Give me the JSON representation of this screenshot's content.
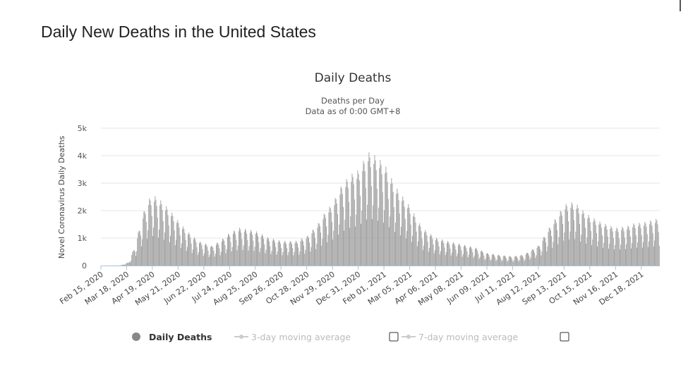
{
  "page": {
    "title": "Daily New Deaths in the United States"
  },
  "chart_data": {
    "type": "bar",
    "title": "Daily Deaths",
    "subtitle_lines": [
      "Deaths per Day",
      "Data as of 0:00 GMT+8"
    ],
    "ylabel": "Novel Coronavirus Daily Deaths",
    "ylim": [
      0,
      5000
    ],
    "yticks": [
      {
        "value": 0,
        "label": "0"
      },
      {
        "value": 1000,
        "label": "1k"
      },
      {
        "value": 2000,
        "label": "2k"
      },
      {
        "value": 3000,
        "label": "3k"
      },
      {
        "value": 4000,
        "label": "4k"
      },
      {
        "value": 5000,
        "label": "5k"
      }
    ],
    "x_start": "2020-02-15",
    "x_end": "2022-01-10",
    "x_ticks": [
      {
        "date": "2020-02-15",
        "label": "Feb 15, 2020"
      },
      {
        "date": "2020-03-18",
        "label": "Mar 18, 2020"
      },
      {
        "date": "2020-04-19",
        "label": "Apr 19, 2020"
      },
      {
        "date": "2020-05-21",
        "label": "May 21, 2020"
      },
      {
        "date": "2020-06-22",
        "label": "Jun 22, 2020"
      },
      {
        "date": "2020-07-24",
        "label": "Jul 24, 2020"
      },
      {
        "date": "2020-08-25",
        "label": "Aug 25, 2020"
      },
      {
        "date": "2020-09-26",
        "label": "Sep 26, 2020"
      },
      {
        "date": "2020-10-28",
        "label": "Oct 28, 2020"
      },
      {
        "date": "2020-11-29",
        "label": "Nov 29, 2020"
      },
      {
        "date": "2020-12-31",
        "label": "Dec 31, 2020"
      },
      {
        "date": "2021-02-01",
        "label": "Feb 01, 2021"
      },
      {
        "date": "2021-03-05",
        "label": "Mar 05, 2021"
      },
      {
        "date": "2021-04-06",
        "label": "Apr 06, 2021"
      },
      {
        "date": "2021-05-08",
        "label": "May 08, 2021"
      },
      {
        "date": "2021-06-09",
        "label": "Jun 09, 2021"
      },
      {
        "date": "2021-07-11",
        "label": "Jul 11, 2021"
      },
      {
        "date": "2021-08-12",
        "label": "Aug 12, 2021"
      },
      {
        "date": "2021-09-13",
        "label": "Sep 13, 2021"
      },
      {
        "date": "2021-10-15",
        "label": "Oct 15, 2021"
      },
      {
        "date": "2021-11-16",
        "label": "Nov 16, 2021"
      },
      {
        "date": "2021-12-18",
        "label": "Dec 18, 2021"
      }
    ],
    "weekly_pattern": [
      0.5,
      0.65,
      1.1,
      1.2,
      1.15,
      1.05,
      0.85
    ],
    "trend_points": [
      {
        "date": "2020-02-15",
        "value": 0
      },
      {
        "date": "2020-03-10",
        "value": 5
      },
      {
        "date": "2020-03-20",
        "value": 100
      },
      {
        "date": "2020-03-28",
        "value": 600
      },
      {
        "date": "2020-04-05",
        "value": 1400
      },
      {
        "date": "2020-04-12",
        "value": 1950
      },
      {
        "date": "2020-04-19",
        "value": 2150
      },
      {
        "date": "2020-04-28",
        "value": 2000
      },
      {
        "date": "2020-05-10",
        "value": 1700
      },
      {
        "date": "2020-05-21",
        "value": 1350
      },
      {
        "date": "2020-06-01",
        "value": 1050
      },
      {
        "date": "2020-06-15",
        "value": 750
      },
      {
        "date": "2020-07-01",
        "value": 600
      },
      {
        "date": "2020-07-12",
        "value": 750
      },
      {
        "date": "2020-07-24",
        "value": 1000
      },
      {
        "date": "2020-08-05",
        "value": 1150
      },
      {
        "date": "2020-08-25",
        "value": 1050
      },
      {
        "date": "2020-09-10",
        "value": 850
      },
      {
        "date": "2020-09-26",
        "value": 750
      },
      {
        "date": "2020-10-15",
        "value": 750
      },
      {
        "date": "2020-10-28",
        "value": 900
      },
      {
        "date": "2020-11-10",
        "value": 1250
      },
      {
        "date": "2020-11-20",
        "value": 1650
      },
      {
        "date": "2020-11-29",
        "value": 1900
      },
      {
        "date": "2020-12-10",
        "value": 2450
      },
      {
        "date": "2020-12-20",
        "value": 2750
      },
      {
        "date": "2020-12-31",
        "value": 2900
      },
      {
        "date": "2021-01-12",
        "value": 3450
      },
      {
        "date": "2021-01-20",
        "value": 3350
      },
      {
        "date": "2021-02-01",
        "value": 3100
      },
      {
        "date": "2021-02-15",
        "value": 2400
      },
      {
        "date": "2021-03-05",
        "value": 1800
      },
      {
        "date": "2021-03-20",
        "value": 1150
      },
      {
        "date": "2021-04-06",
        "value": 850
      },
      {
        "date": "2021-04-20",
        "value": 750
      },
      {
        "date": "2021-05-08",
        "value": 650
      },
      {
        "date": "2021-05-25",
        "value": 550
      },
      {
        "date": "2021-06-09",
        "value": 380
      },
      {
        "date": "2021-06-25",
        "value": 320
      },
      {
        "date": "2021-07-11",
        "value": 280
      },
      {
        "date": "2021-07-25",
        "value": 340
      },
      {
        "date": "2021-08-12",
        "value": 620
      },
      {
        "date": "2021-08-25",
        "value": 1150
      },
      {
        "date": "2021-09-05",
        "value": 1550
      },
      {
        "date": "2021-09-13",
        "value": 1850
      },
      {
        "date": "2021-09-25",
        "value": 1950
      },
      {
        "date": "2021-10-05",
        "value": 1700
      },
      {
        "date": "2021-10-15",
        "value": 1500
      },
      {
        "date": "2021-10-30",
        "value": 1300
      },
      {
        "date": "2021-11-16",
        "value": 1150
      },
      {
        "date": "2021-11-30",
        "value": 1200
      },
      {
        "date": "2021-12-10",
        "value": 1300
      },
      {
        "date": "2021-12-18",
        "value": 1300
      },
      {
        "date": "2022-01-10",
        "value": 1450
      }
    ],
    "bar_color": "#9e9e9e",
    "grid": true,
    "legend": {
      "placement": "bottom",
      "items": [
        {
          "label": "Daily Deaths",
          "active": true,
          "color": "#888888",
          "text_color": "#333333",
          "has_checkbox": false
        },
        {
          "label": "3-day moving average",
          "active": false,
          "color": "#cccccc",
          "text_color": "#bbbbbb",
          "has_checkbox": true
        },
        {
          "label": "7-day moving average",
          "active": false,
          "color": "#cccccc",
          "text_color": "#bbbbbb",
          "has_checkbox": true
        }
      ]
    }
  }
}
